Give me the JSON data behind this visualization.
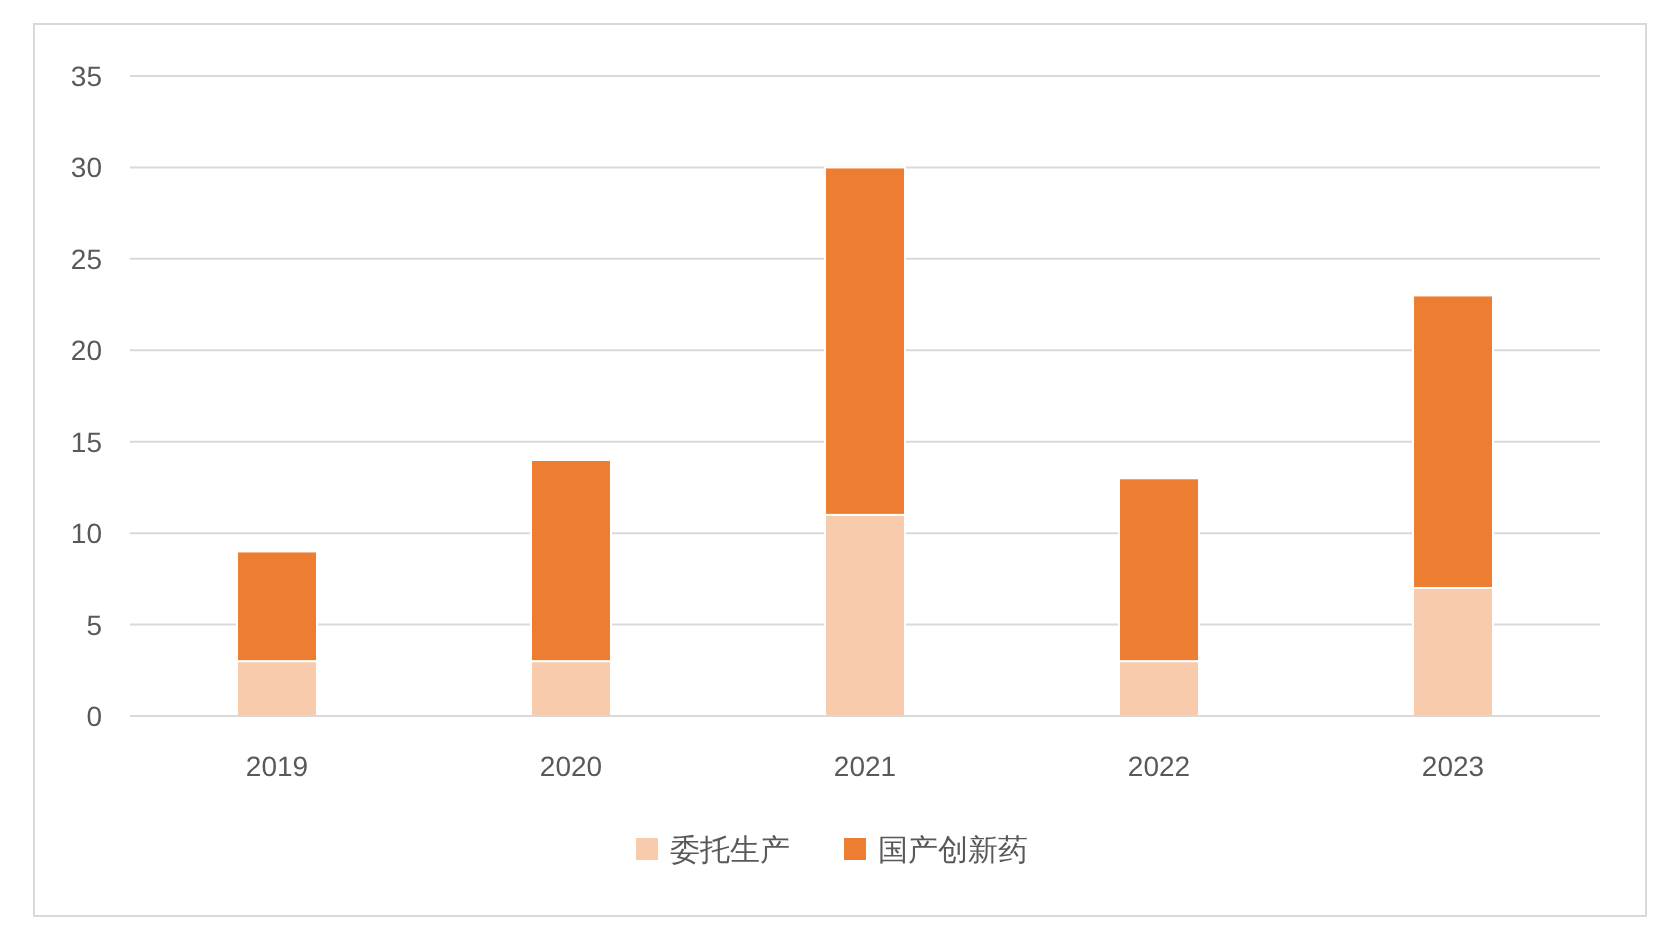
{
  "chart_data": {
    "type": "bar",
    "stacked": true,
    "categories": [
      "2019",
      "2020",
      "2021",
      "2022",
      "2023"
    ],
    "series": [
      {
        "name": "委托生产",
        "color": "#f8cbad",
        "values": [
          3,
          3,
          11,
          3,
          7
        ]
      },
      {
        "name": "国产创新药",
        "color": "#ed7d31",
        "values": [
          6,
          11,
          19,
          10,
          16
        ]
      }
    ],
    "ylim": [
      0,
      35
    ],
    "yticks": [
      0,
      5,
      10,
      15,
      20,
      25,
      30,
      35
    ],
    "grid": "y",
    "legend": "bottom"
  }
}
